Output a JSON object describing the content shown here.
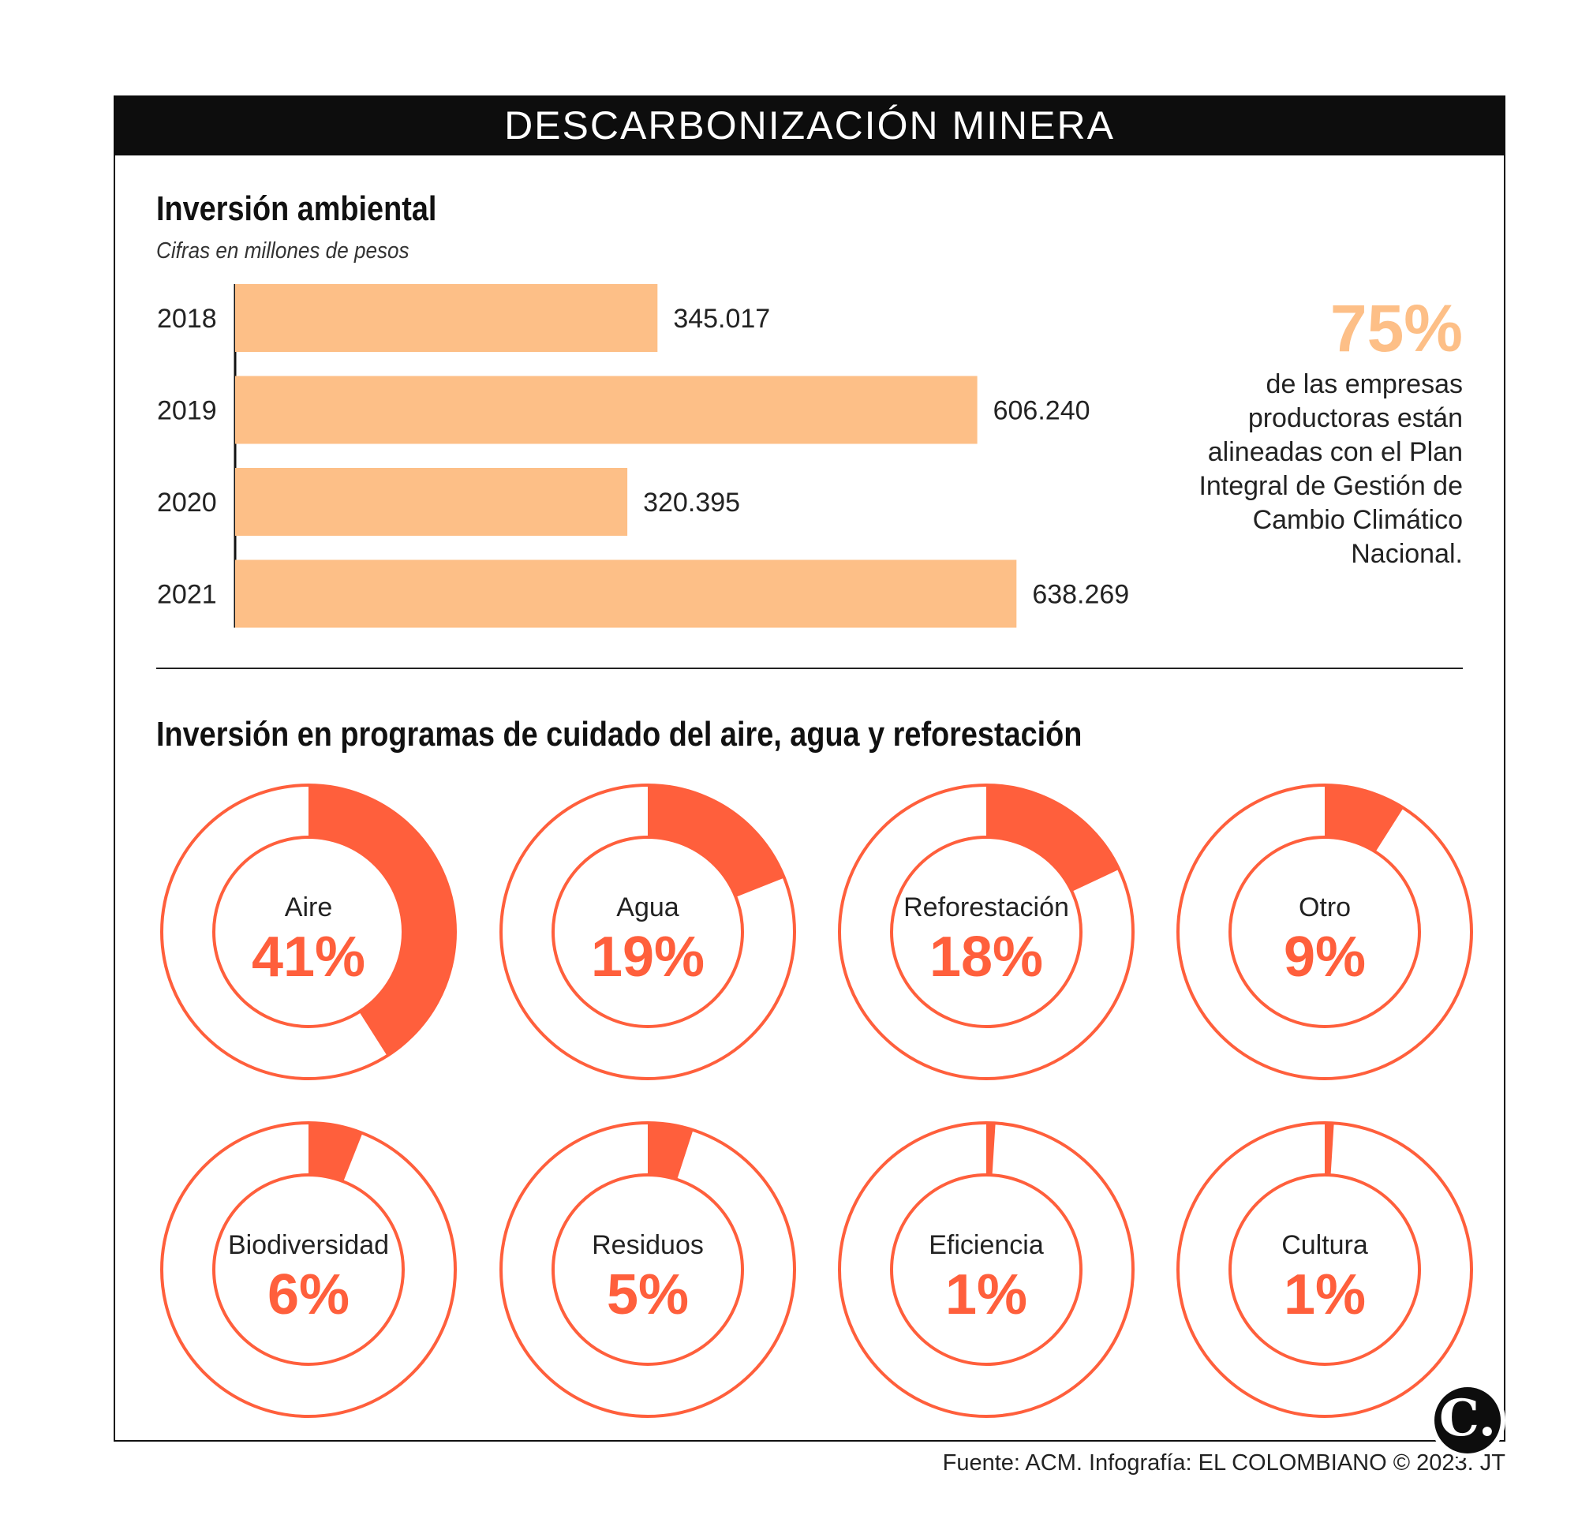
{
  "header": {
    "title": "DESCARBONIZACIÓN MINERA"
  },
  "bar_section": {
    "title": "Inversión ambiental",
    "subtitle": "Cifras en millones de pesos"
  },
  "stat": {
    "value": "75%",
    "text": "de las empresas productoras están alineadas con el Plan Integral de Gestión de Cambio Climático Nacional."
  },
  "donut_section": {
    "title": "Inversión en programas de cuidado del aire, agua y reforestación"
  },
  "footer": {
    "source": "Fuente: ACM. Infografía: EL COLOMBIANO © 2023. JT"
  },
  "logo": {
    "letter": "C."
  },
  "colors": {
    "bar": "#fdbf87",
    "accent": "#ff5f3c",
    "header_bg": "#0d0d0d"
  },
  "chart_data": [
    {
      "type": "bar",
      "orientation": "horizontal",
      "title": "Inversión ambiental",
      "subtitle": "Cifras en millones de pesos",
      "categories": [
        "2018",
        "2019",
        "2020",
        "2021"
      ],
      "values": [
        345017,
        606240,
        320395,
        638269
      ],
      "value_labels": [
        "345.017",
        "606.240",
        "320.395",
        "638.269"
      ],
      "xlim": [
        0,
        640000
      ]
    },
    {
      "type": "pie",
      "variant": "donut",
      "title": "Inversión en programas de cuidado del aire, agua y reforestación",
      "categories": [
        "Aire",
        "Agua",
        "Reforestación",
        "Otro",
        "Biodiversidad",
        "Residuos",
        "Eficiencia",
        "Cultura"
      ],
      "values": [
        41,
        19,
        18,
        9,
        6,
        5,
        1,
        1
      ],
      "value_labels": [
        "41%",
        "19%",
        "18%",
        "9%",
        "6%",
        "5%",
        "1%",
        "1%"
      ],
      "unit": "%"
    }
  ]
}
